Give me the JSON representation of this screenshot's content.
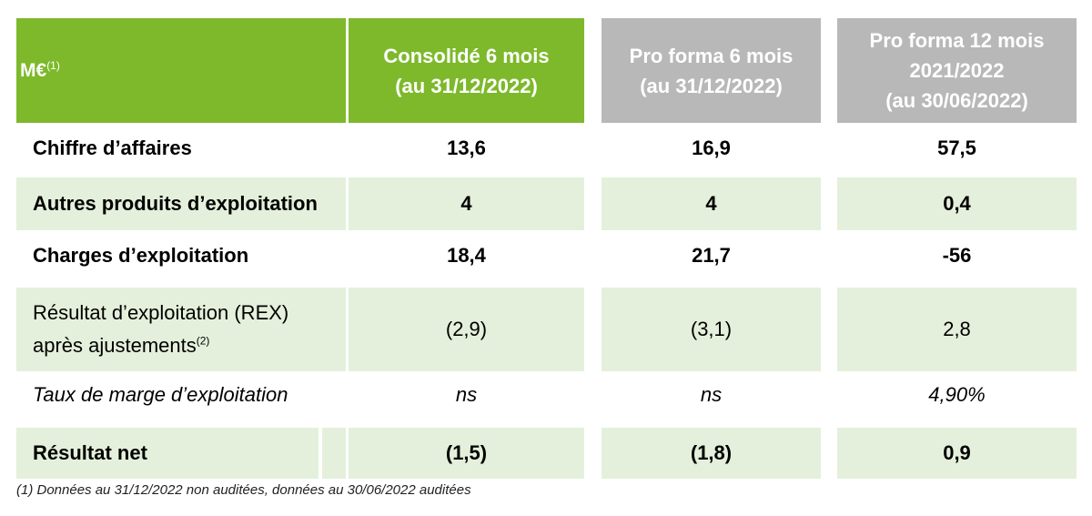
{
  "header": {
    "corner": "M€",
    "corner_sup": "(1)",
    "col1": [
      "Consolidé 6 mois",
      "(au 31/12/2022)"
    ],
    "col2": [
      "Pro forma 6 mois",
      "(au 31/12/2022)"
    ],
    "col3": [
      "Pro forma 12 mois",
      "2021/2022",
      "(au 30/06/2022)"
    ]
  },
  "rows": [
    {
      "label": "Chiffre d’affaires",
      "v1": "13,6",
      "v2": "16,9",
      "v3": "57,5"
    },
    {
      "label": "Autres produits d’exploitation",
      "v1": "4",
      "v2": "4",
      "v3": "0,4"
    },
    {
      "label": "Charges d’exploitation",
      "v1": "18,4",
      "v2": "21,7",
      "v3": "-56"
    },
    {
      "label_line1": "Résultat d’exploitation (REX)",
      "label_line2": "après ajustements",
      "label_sup": "(2)",
      "v1": "(2,9)",
      "v2": "(3,1)",
      "v3": "2,8"
    },
    {
      "label": "Taux de marge d’exploitation",
      "v1": "ns",
      "v2": "ns",
      "v3": "4,90%"
    },
    {
      "label": "Résultat net",
      "v1": "(1,5)",
      "v2": "(1,8)",
      "v3": "0,9"
    }
  ],
  "footnote": "(1) Données au 31/12/2022 non auditées, données au 30/06/2022 auditées",
  "colors": {
    "header_green": "#7db92b",
    "header_grey": "#b8b8b8",
    "row_tint": "#e4f0db"
  }
}
